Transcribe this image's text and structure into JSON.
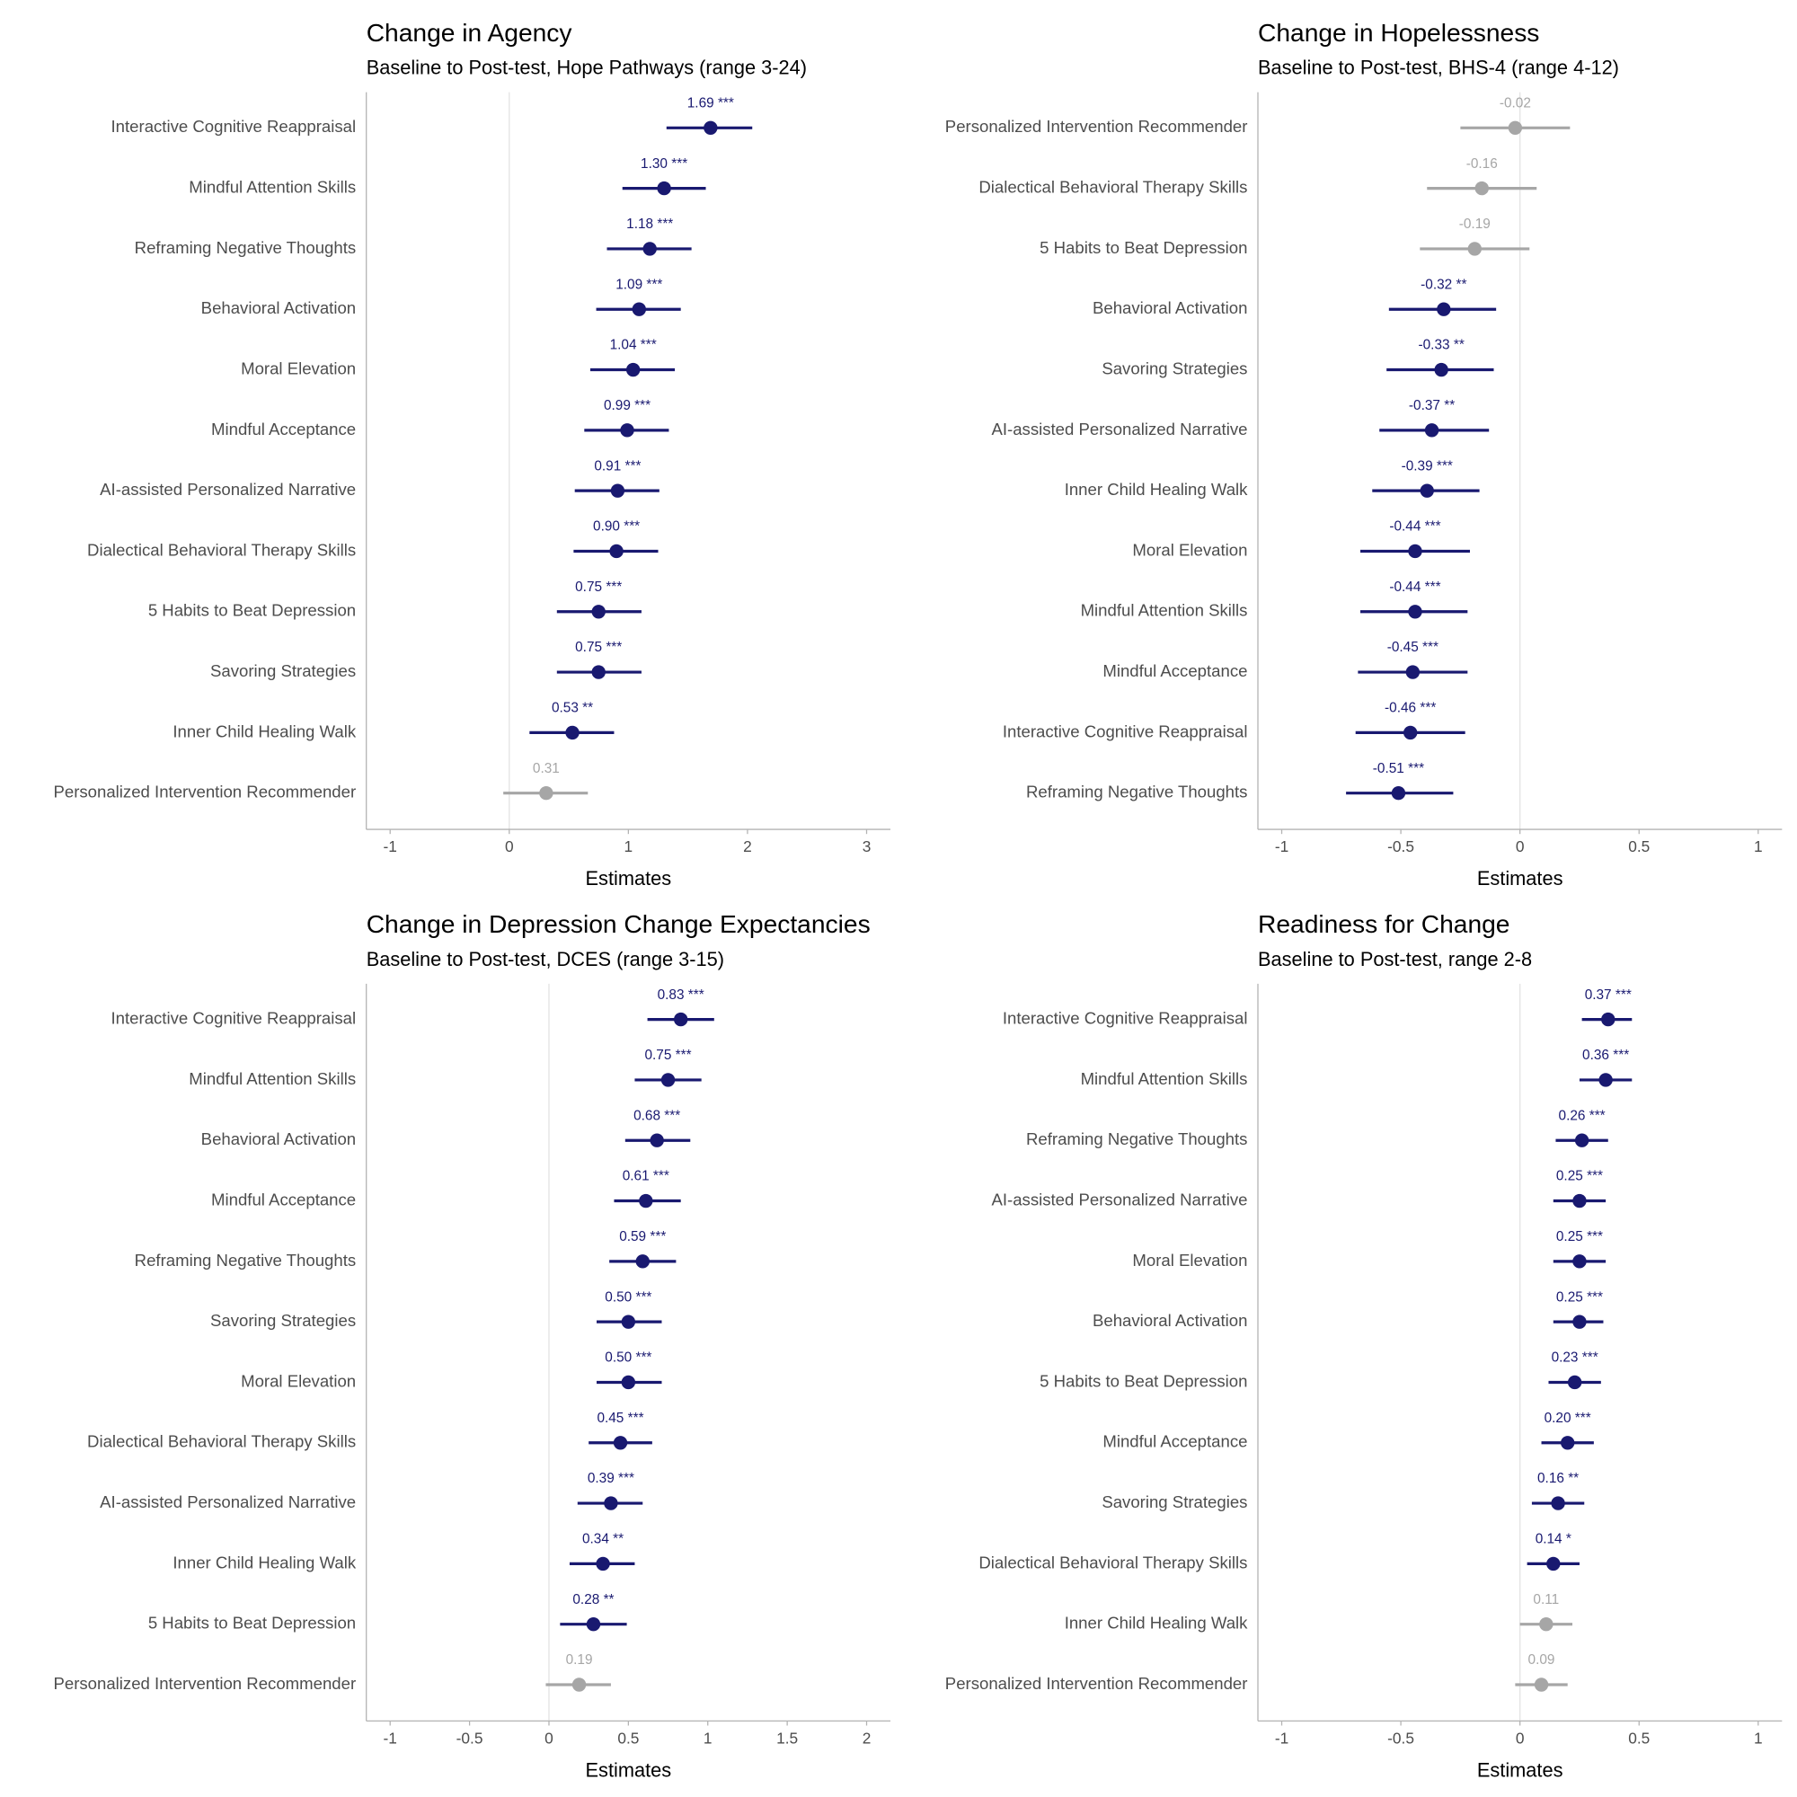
{
  "chart_data": [
    {
      "type": "forest",
      "title": "Change in Agency",
      "subtitle": "Baseline to Post-test, Hope Pathways (range 3-24)",
      "x_label": "Estimates",
      "categories": [
        "Interactive Cognitive Reappraisal",
        "Mindful Attention Skills",
        "Reframing Negative Thoughts",
        "Behavioral Activation",
        "Moral Elevation",
        "Mindful Acceptance",
        "AI-assisted Personalized Narrative",
        "Dialectical Behavioral Therapy Skills",
        "5 Habits to Beat Depression",
        "Savoring Strategies",
        "Inner Child Healing Walk",
        "Personalized Intervention Recommender"
      ],
      "values": [
        1.69,
        1.3,
        1.18,
        1.09,
        1.04,
        0.99,
        0.91,
        0.9,
        0.75,
        0.75,
        0.53,
        0.31
      ],
      "value_labels": [
        "1.69 ***",
        "1.30 ***",
        "1.18 ***",
        "1.09 ***",
        "1.04 ***",
        "0.99 ***",
        "0.91 ***",
        "0.90 ***",
        "0.75 ***",
        "0.75 ***",
        "0.53 **",
        "0.31"
      ],
      "lower": [
        1.32,
        0.95,
        0.82,
        0.73,
        0.68,
        0.63,
        0.55,
        0.54,
        0.4,
        0.4,
        0.17,
        -0.05
      ],
      "upper": [
        2.04,
        1.65,
        1.53,
        1.44,
        1.39,
        1.34,
        1.26,
        1.25,
        1.11,
        1.11,
        0.88,
        0.66
      ],
      "colors": [
        "#191970",
        "#191970",
        "#191970",
        "#191970",
        "#191970",
        "#191970",
        "#191970",
        "#191970",
        "#191970",
        "#191970",
        "#191970",
        "#a6a6a6"
      ],
      "xlim": [
        -1.2,
        3.2
      ],
      "xticks": [
        -1,
        0,
        1,
        2,
        3
      ],
      "vline": 0
    },
    {
      "type": "forest",
      "title": "Change in Hopelessness",
      "subtitle": "Baseline to Post-test, BHS-4 (range 4-12)",
      "x_label": "Estimates",
      "categories": [
        "Personalized Intervention Recommender",
        "Dialectical Behavioral Therapy Skills",
        "5 Habits to Beat Depression",
        "Behavioral Activation",
        "Savoring Strategies",
        "AI-assisted Personalized Narrative",
        "Inner Child Healing Walk",
        "Moral Elevation",
        "Mindful Attention Skills",
        "Mindful Acceptance",
        "Interactive Cognitive Reappraisal",
        "Reframing Negative Thoughts"
      ],
      "values": [
        -0.02,
        -0.16,
        -0.19,
        -0.32,
        -0.33,
        -0.37,
        -0.39,
        -0.44,
        -0.44,
        -0.45,
        -0.46,
        -0.51
      ],
      "value_labels": [
        "-0.02",
        "-0.16",
        "-0.19",
        "-0.32 **",
        "-0.33 **",
        "-0.37 **",
        "-0.39 ***",
        "-0.44 ***",
        "-0.44 ***",
        "-0.45 ***",
        "-0.46 ***",
        "-0.51 ***"
      ],
      "lower": [
        -0.25,
        -0.39,
        -0.42,
        -0.55,
        -0.56,
        -0.59,
        -0.62,
        -0.67,
        -0.67,
        -0.68,
        -0.69,
        -0.73
      ],
      "upper": [
        0.21,
        0.07,
        0.04,
        -0.1,
        -0.11,
        -0.13,
        -0.17,
        -0.21,
        -0.22,
        -0.22,
        -0.23,
        -0.28
      ],
      "colors": [
        "#a6a6a6",
        "#a6a6a6",
        "#a6a6a6",
        "#191970",
        "#191970",
        "#191970",
        "#191970",
        "#191970",
        "#191970",
        "#191970",
        "#191970",
        "#191970"
      ],
      "xlim": [
        -1.1,
        1.1
      ],
      "xticks": [
        -1,
        -0.5,
        0,
        0.5,
        1
      ],
      "vline": 0
    },
    {
      "type": "forest",
      "title": "Change in Depression Change Expectancies",
      "subtitle": "Baseline to Post-test, DCES (range 3-15)",
      "x_label": "Estimates",
      "categories": [
        "Interactive Cognitive Reappraisal",
        "Mindful Attention Skills",
        "Behavioral Activation",
        "Mindful Acceptance",
        "Reframing Negative Thoughts",
        "Savoring Strategies",
        "Moral Elevation",
        "Dialectical Behavioral Therapy Skills",
        "AI-assisted Personalized Narrative",
        "Inner Child Healing Walk",
        "5 Habits to Beat Depression",
        "Personalized Intervention Recommender"
      ],
      "values": [
        0.83,
        0.75,
        0.68,
        0.61,
        0.59,
        0.5,
        0.5,
        0.45,
        0.39,
        0.34,
        0.28,
        0.19
      ],
      "value_labels": [
        "0.83 ***",
        "0.75 ***",
        "0.68 ***",
        "0.61 ***",
        "0.59 ***",
        "0.50 ***",
        "0.50 ***",
        "0.45 ***",
        "0.39 ***",
        "0.34 **",
        "0.28 **",
        "0.19"
      ],
      "lower": [
        0.62,
        0.54,
        0.48,
        0.41,
        0.38,
        0.3,
        0.3,
        0.25,
        0.18,
        0.13,
        0.07,
        -0.02
      ],
      "upper": [
        1.04,
        0.96,
        0.89,
        0.83,
        0.8,
        0.71,
        0.71,
        0.65,
        0.59,
        0.54,
        0.49,
        0.39
      ],
      "colors": [
        "#191970",
        "#191970",
        "#191970",
        "#191970",
        "#191970",
        "#191970",
        "#191970",
        "#191970",
        "#191970",
        "#191970",
        "#191970",
        "#a6a6a6"
      ],
      "xlim": [
        -1.15,
        2.15
      ],
      "xticks": [
        -1,
        -0.5,
        0,
        0.5,
        1,
        1.5,
        2
      ],
      "vline": 0
    },
    {
      "type": "forest",
      "title": "Readiness for Change",
      "subtitle": "Baseline to Post-test, range 2-8",
      "x_label": "Estimates",
      "categories": [
        "Interactive Cognitive Reappraisal",
        "Mindful Attention Skills",
        "Reframing Negative Thoughts",
        "AI-assisted Personalized Narrative",
        "Moral Elevation",
        "Behavioral Activation",
        "5 Habits to Beat Depression",
        "Mindful Acceptance",
        "Savoring Strategies",
        "Dialectical Behavioral Therapy Skills",
        "Inner Child Healing Walk",
        "Personalized Intervention Recommender"
      ],
      "values": [
        0.37,
        0.36,
        0.26,
        0.25,
        0.25,
        0.25,
        0.23,
        0.2,
        0.16,
        0.14,
        0.11,
        0.09
      ],
      "value_labels": [
        "0.37 ***",
        "0.36 ***",
        "0.26 ***",
        "0.25 ***",
        "0.25 ***",
        "0.25 ***",
        "0.23 ***",
        "0.20 ***",
        "0.16 **",
        "0.14 *",
        "0.11",
        "0.09"
      ],
      "lower": [
        0.26,
        0.25,
        0.15,
        0.14,
        0.14,
        0.14,
        0.12,
        0.09,
        0.05,
        0.03,
        0.0,
        -0.02
      ],
      "upper": [
        0.47,
        0.47,
        0.37,
        0.36,
        0.36,
        0.35,
        0.34,
        0.31,
        0.27,
        0.25,
        0.22,
        0.2
      ],
      "colors": [
        "#191970",
        "#191970",
        "#191970",
        "#191970",
        "#191970",
        "#191970",
        "#191970",
        "#191970",
        "#191970",
        "#191970",
        "#a6a6a6",
        "#a6a6a6"
      ],
      "xlim": [
        -1.1,
        1.1
      ],
      "xticks": [
        -1,
        -0.5,
        0,
        0.5,
        1
      ],
      "vline": 0
    }
  ]
}
